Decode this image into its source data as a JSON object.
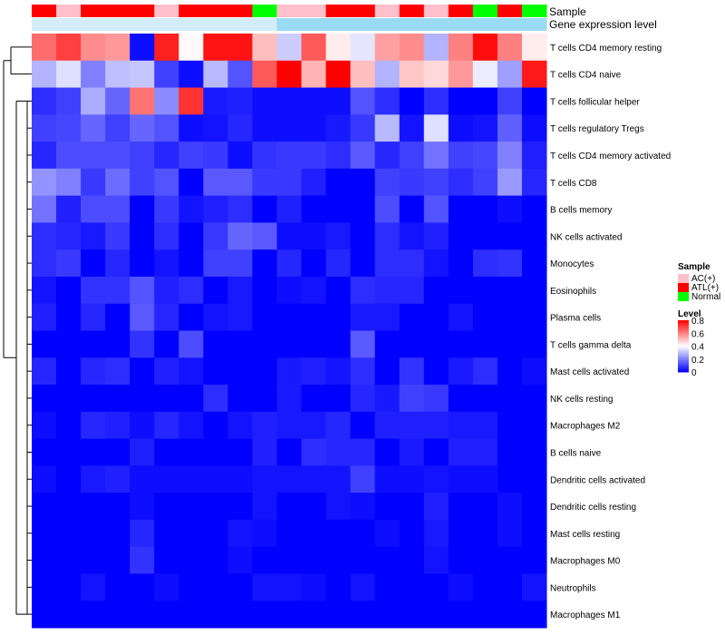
{
  "chart_data": {
    "type": "heatmap",
    "title": "",
    "annotation_labels": [
      "Sample",
      "Gene expression level"
    ],
    "rows": [
      "T cells CD4 memory resting",
      "T cells CD4 naive",
      "T cells follicular helper",
      "T cells regulatory  Tregs",
      "T cells CD4 memory activated",
      "T cells CD8",
      "B cells memory",
      "NK cells activated",
      "Monocytes",
      "Eosinophils",
      "Plasma cells",
      "T cells gamma delta",
      "Mast cells activated",
      "NK cells resting",
      "Macrophages M2",
      "B cells naive",
      "Dendritic cells activated",
      "Dendritic cells resting",
      "Mast cells resting",
      "Macrophages M0",
      "Neutrophils",
      "Macrophages M1"
    ],
    "column_groups": [
      "ATL(+)",
      "AC(+)",
      "ATL(+)",
      "ATL(+)",
      "ATL(+)",
      "AC(+)",
      "ATL(+)",
      "ATL(+)",
      "ATL(+)",
      "Normal",
      "AC(+)",
      "AC(+)",
      "ATL(+)",
      "ATL(+)",
      "AC(+)",
      "ATL(+)",
      "AC(+)",
      "ATL(+)",
      "Normal",
      "ATL(+)",
      "Normal"
    ],
    "expression_level": [
      0.15,
      0.15,
      0.15,
      0.15,
      0.15,
      0.15,
      0.15,
      0.15,
      0.15,
      0.15,
      0.55,
      0.55,
      0.55,
      0.55,
      0.55,
      0.55,
      0.55,
      0.55,
      0.55,
      0.55,
      0.55
    ],
    "values": [
      [
        0.63,
        0.7,
        0.58,
        0.56,
        0.02,
        0.75,
        0.41,
        0.77,
        0.77,
        0.5,
        0.32,
        0.66,
        0.43,
        0.36,
        0.55,
        0.58,
        0.28,
        0.6,
        0.78,
        0.6,
        0.43
      ],
      [
        0.28,
        0.35,
        0.2,
        0.3,
        0.31,
        0.1,
        0.02,
        0.29,
        0.13,
        0.66,
        0.8,
        0.52,
        0.8,
        0.5,
        0.28,
        0.49,
        0.46,
        0.56,
        0.37,
        0.25,
        0.76
      ],
      [
        0.07,
        0.1,
        0.27,
        0.16,
        0.62,
        0.22,
        0.72,
        0.04,
        0.05,
        0.02,
        0.02,
        0.02,
        0.02,
        0.13,
        0.07,
        0.0,
        0.07,
        0.0,
        0.0,
        0.1,
        0.0
      ],
      [
        0.1,
        0.11,
        0.16,
        0.1,
        0.16,
        0.13,
        0.02,
        0.03,
        0.06,
        0.02,
        0.02,
        0.02,
        0.04,
        0.09,
        0.29,
        0.03,
        0.35,
        0.02,
        0.03,
        0.15,
        0.02
      ],
      [
        0.06,
        0.12,
        0.12,
        0.12,
        0.1,
        0.06,
        0.1,
        0.09,
        0.02,
        0.08,
        0.09,
        0.09,
        0.07,
        0.14,
        0.06,
        0.1,
        0.18,
        0.1,
        0.11,
        0.2,
        0.05
      ],
      [
        0.23,
        0.2,
        0.09,
        0.17,
        0.1,
        0.13,
        0.0,
        0.14,
        0.14,
        0.09,
        0.09,
        0.05,
        0.0,
        0.0,
        0.1,
        0.09,
        0.1,
        0.07,
        0.1,
        0.24,
        0.06
      ],
      [
        0.18,
        0.05,
        0.12,
        0.12,
        0.0,
        0.09,
        0.03,
        0.05,
        0.07,
        0.0,
        0.05,
        0.0,
        0.0,
        0.0,
        0.12,
        0.0,
        0.13,
        0.0,
        0.0,
        0.02,
        0.0
      ],
      [
        0.07,
        0.06,
        0.04,
        0.09,
        0.0,
        0.07,
        0.0,
        0.09,
        0.16,
        0.14,
        0.02,
        0.02,
        0.04,
        0.0,
        0.07,
        0.03,
        0.05,
        0.0,
        0.0,
        0.0,
        0.0
      ],
      [
        0.07,
        0.09,
        0.0,
        0.06,
        0.0,
        0.03,
        0.0,
        0.1,
        0.1,
        0.0,
        0.06,
        0.0,
        0.06,
        0.0,
        0.07,
        0.07,
        0.03,
        0.0,
        0.07,
        0.08,
        0.0
      ],
      [
        0.03,
        0.0,
        0.08,
        0.08,
        0.13,
        0.05,
        0.07,
        0.0,
        0.04,
        0.0,
        0.02,
        0.03,
        0.0,
        0.07,
        0.06,
        0.06,
        0.0,
        0.0,
        0.0,
        0.0,
        0.0
      ],
      [
        0.05,
        0.0,
        0.06,
        0.0,
        0.14,
        0.06,
        0.0,
        0.03,
        0.04,
        0.0,
        0.0,
        0.0,
        0.0,
        0.04,
        0.04,
        0.0,
        0.0,
        0.03,
        0.0,
        0.0,
        0.0
      ],
      [
        0.0,
        0.0,
        0.0,
        0.0,
        0.08,
        0.0,
        0.12,
        0.0,
        0.0,
        0.0,
        0.0,
        0.0,
        0.0,
        0.14,
        0.0,
        0.0,
        0.0,
        0.0,
        0.0,
        0.0,
        0.0
      ],
      [
        0.06,
        0.0,
        0.06,
        0.07,
        0.0,
        0.05,
        0.03,
        0.0,
        0.0,
        0.0,
        0.04,
        0.05,
        0.03,
        0.07,
        0.0,
        0.08,
        0.0,
        0.04,
        0.07,
        0.0,
        0.02
      ],
      [
        0.0,
        0.0,
        0.0,
        0.0,
        0.0,
        0.0,
        0.0,
        0.07,
        0.0,
        0.0,
        0.04,
        0.0,
        0.0,
        0.06,
        0.04,
        0.1,
        0.09,
        0.0,
        0.0,
        0.0,
        0.0
      ],
      [
        0.02,
        0.0,
        0.06,
        0.05,
        0.02,
        0.06,
        0.03,
        0.0,
        0.03,
        0.05,
        0.04,
        0.04,
        0.06,
        0.0,
        0.05,
        0.05,
        0.05,
        0.04,
        0.04,
        0.0,
        0.0
      ],
      [
        0.0,
        0.0,
        0.0,
        0.0,
        0.05,
        0.0,
        0.0,
        0.0,
        0.0,
        0.05,
        0.0,
        0.07,
        0.06,
        0.06,
        0.0,
        0.04,
        0.0,
        0.05,
        0.05,
        0.0,
        0.0
      ],
      [
        0.02,
        0.0,
        0.04,
        0.05,
        0.02,
        0.02,
        0.02,
        0.02,
        0.02,
        0.03,
        0.03,
        0.03,
        0.03,
        0.1,
        0.02,
        0.02,
        0.03,
        0.02,
        0.02,
        0.0,
        0.0
      ],
      [
        0.0,
        0.0,
        0.0,
        0.0,
        0.02,
        0.0,
        0.0,
        0.0,
        0.0,
        0.03,
        0.0,
        0.0,
        0.03,
        0.02,
        0.0,
        0.0,
        0.05,
        0.0,
        0.0,
        0.02,
        0.0
      ],
      [
        0.0,
        0.0,
        0.0,
        0.0,
        0.06,
        0.0,
        0.0,
        0.0,
        0.03,
        0.02,
        0.0,
        0.0,
        0.0,
        0.0,
        0.02,
        0.0,
        0.04,
        0.0,
        0.0,
        0.02,
        0.0
      ],
      [
        0.0,
        0.0,
        0.0,
        0.0,
        0.08,
        0.0,
        0.0,
        0.0,
        0.02,
        0.0,
        0.0,
        0.0,
        0.0,
        0.0,
        0.0,
        0.0,
        0.03,
        0.0,
        0.0,
        0.0,
        0.0
      ],
      [
        0.0,
        0.0,
        0.03,
        0.0,
        0.0,
        0.02,
        0.0,
        0.0,
        0.0,
        0.03,
        0.03,
        0.02,
        0.0,
        0.03,
        0.0,
        0.0,
        0.0,
        0.02,
        0.0,
        0.0,
        0.03
      ],
      [
        0.0,
        0.0,
        0.0,
        0.0,
        0.0,
        0.0,
        0.0,
        0.0,
        0.0,
        0.0,
        0.0,
        0.0,
        0.0,
        0.0,
        0.0,
        0.0,
        0.0,
        0.0,
        0.0,
        0.0,
        0.0
      ]
    ],
    "legend": {
      "sample_title": "Sample",
      "sample_entries": [
        {
          "label": "AC(+)",
          "color": "#ffc0cb"
        },
        {
          "label": "ATL(+)",
          "color": "#ff0000"
        },
        {
          "label": "Normal",
          "color": "#00ff00"
        }
      ],
      "level_title": "Level",
      "level_ticks": [
        "0.8",
        "0.6",
        "0.4",
        "0.2",
        "0"
      ],
      "level_range": [
        0,
        0.8
      ]
    },
    "colors": {
      "low": "#0000ff",
      "mid": "#ffffff",
      "high": "#ff0000",
      "expression_low": "#e8f4fa",
      "expression_high": "#56c6ee"
    }
  }
}
